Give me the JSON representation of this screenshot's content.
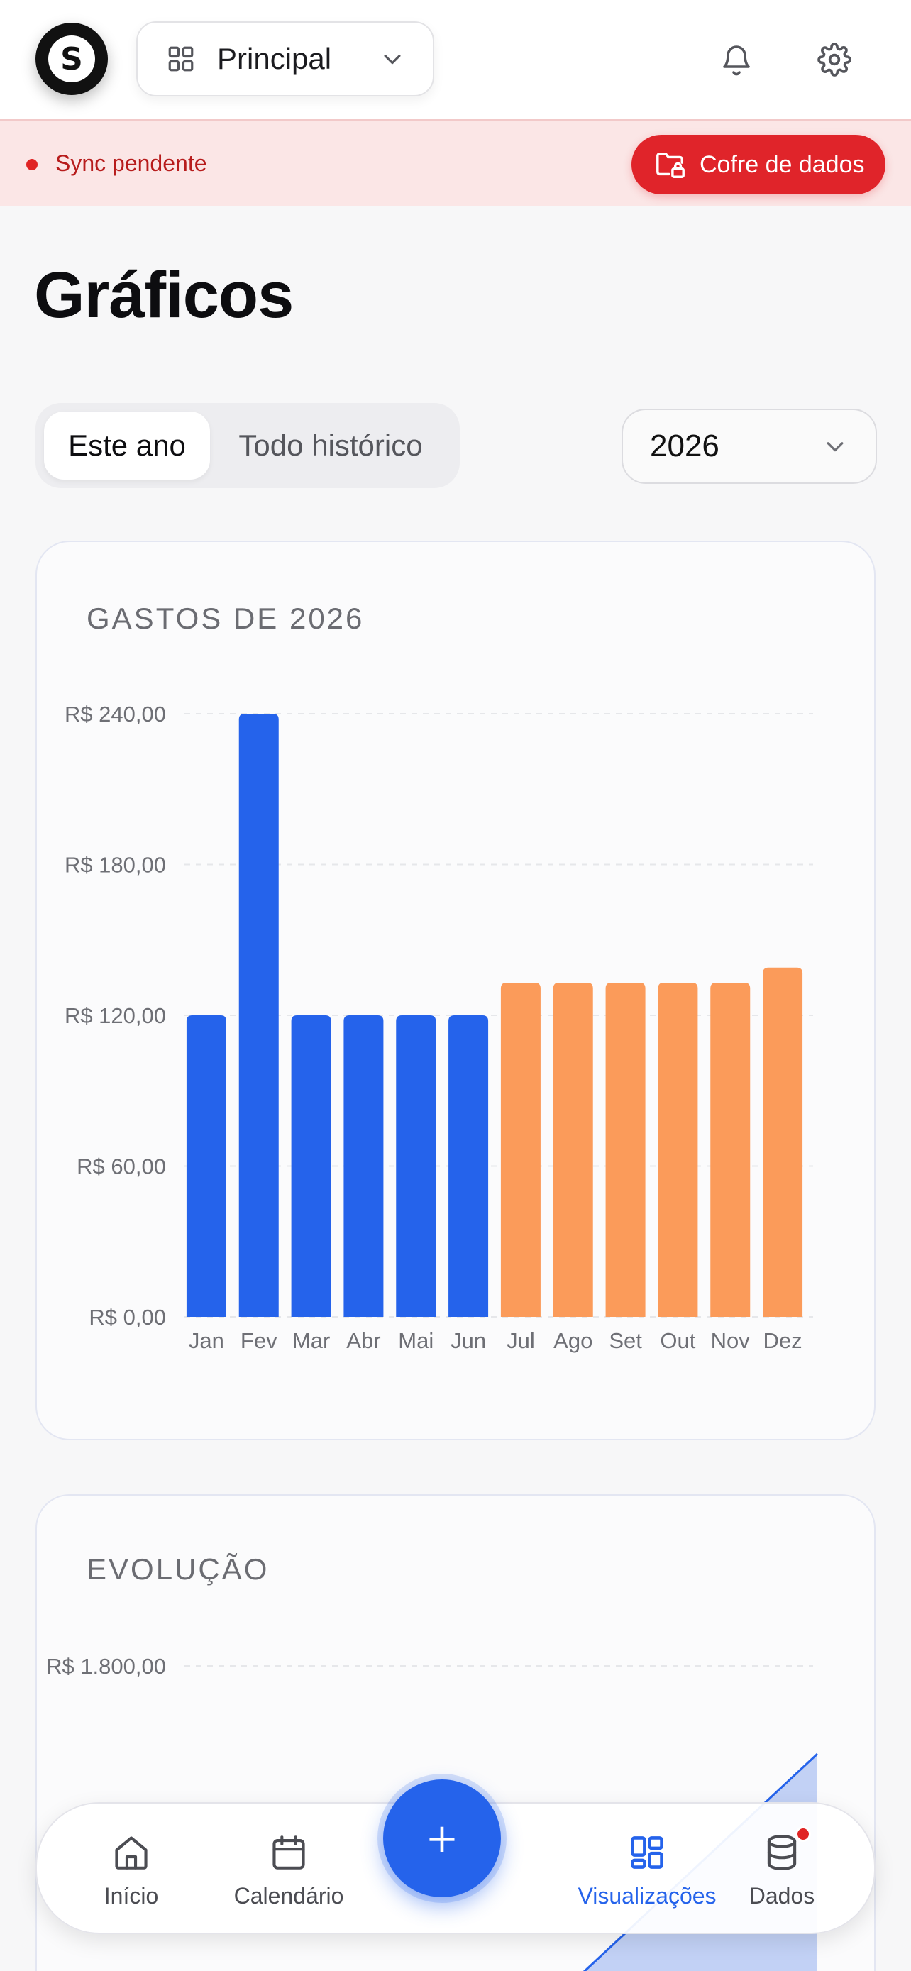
{
  "header": {
    "logo_letter": "S",
    "workspace_label": "Principal"
  },
  "banner": {
    "sync_text": "Sync pendente",
    "vault_label": "Cofre de dados"
  },
  "page": {
    "title": "Gráficos"
  },
  "filters": {
    "tabs": [
      {
        "label": "Este ano",
        "active": true
      },
      {
        "label": "Todo histórico",
        "active": false
      }
    ],
    "year": "2026"
  },
  "cards": {
    "expenses_title": "GASTOS DE 2026",
    "evolution_title": "EVOLUÇÃO"
  },
  "chart_data": [
    {
      "type": "bar",
      "title": "GASTOS DE 2026",
      "categories": [
        "Jan",
        "Fev",
        "Mar",
        "Abr",
        "Mai",
        "Jun",
        "Jul",
        "Ago",
        "Set",
        "Out",
        "Nov",
        "Dez"
      ],
      "values": [
        120,
        240,
        120,
        120,
        120,
        120,
        133,
        133,
        133,
        133,
        133,
        139
      ],
      "bar_colors": [
        "#2563eb",
        "#2563eb",
        "#2563eb",
        "#2563eb",
        "#2563eb",
        "#2563eb",
        "#fb9b5a",
        "#fb9b5a",
        "#fb9b5a",
        "#fb9b5a",
        "#fb9b5a",
        "#fb9b5a"
      ],
      "ylim": [
        0,
        240
      ],
      "yticks": [
        0,
        60,
        120,
        180,
        240
      ],
      "ytick_labels": [
        "R$ 0,00",
        "R$ 60,00",
        "R$ 120,00",
        "R$ 180,00",
        "R$ 240,00"
      ],
      "grid": true
    },
    {
      "type": "area",
      "title": "EVOLUÇÃO",
      "ytick_labels": [
        "R$ 1.800,00"
      ],
      "color": "#2563eb",
      "grid": true
    }
  ],
  "nav": {
    "items": [
      {
        "label": "Início",
        "icon": "home-icon",
        "active": false
      },
      {
        "label": "Calendário",
        "icon": "calendar-icon",
        "active": false
      },
      {
        "label": "Visualizações",
        "icon": "grid-icon",
        "active": true
      },
      {
        "label": "Dados",
        "icon": "database-icon",
        "active": false,
        "badge": true
      }
    ],
    "fab_symbol": "+"
  },
  "colors": {
    "primary": "#2563eb",
    "projection": "#fb9b5a",
    "danger": "#e0242a",
    "banner_bg": "#fbe6e6"
  }
}
